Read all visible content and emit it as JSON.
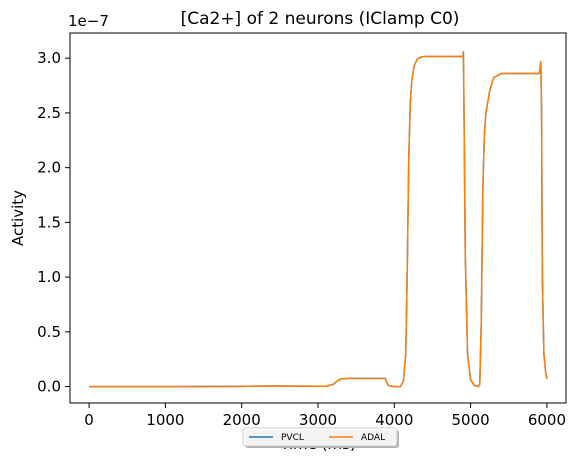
{
  "chart_data": {
    "type": "line",
    "title": "[Ca2+] of 2 neurons (IClamp C0)",
    "xlabel": "Time (ms)",
    "ylabel": "Activity",
    "y_offset_label": "1e−7",
    "xlim": [
      -250,
      6250
    ],
    "ylim": [
      -0.15,
      3.23
    ],
    "xticks": [
      0,
      1000,
      2000,
      3000,
      4000,
      5000,
      6000
    ],
    "xtick_labels": [
      "0",
      "1000",
      "2000",
      "3000",
      "4000",
      "5000",
      "6000"
    ],
    "yticks": [
      0.0,
      0.5,
      1.0,
      1.5,
      2.0,
      2.5,
      3.0
    ],
    "ytick_labels": [
      "0.0",
      "0.5",
      "1.0",
      "1.5",
      "2.0",
      "2.5",
      "3.0"
    ],
    "grid": false,
    "legend_placement": "bottom-center",
    "series": [
      {
        "name": "PVCL",
        "color": "#1f77b4",
        "x": [
          0,
          500,
          1000,
          1500,
          2000,
          2200,
          2400,
          2800,
          3100,
          3200,
          3250,
          3300,
          3400,
          3600,
          3880,
          3920,
          4000,
          4080,
          4120,
          4150,
          4170,
          4190,
          4210,
          4230,
          4260,
          4300,
          4350,
          4400,
          4500,
          4700,
          4900,
          4905,
          4915,
          4930,
          4960,
          5000,
          5050,
          5100,
          5120,
          5140,
          5160,
          5180,
          5200,
          5250,
          5300,
          5400,
          5600,
          5800,
          5900,
          5920,
          5930,
          5940,
          5960,
          5980,
          6000
        ],
        "values": [
          0,
          0,
          0,
          0.001,
          0.002,
          0.004,
          0.005,
          0.004,
          0.003,
          0.02,
          0.05,
          0.07,
          0.075,
          0.075,
          0.075,
          0.01,
          0,
          0,
          0.05,
          0.3,
          1.1,
          2.1,
          2.6,
          2.8,
          2.93,
          2.99,
          3.01,
          3.015,
          3.015,
          3.015,
          3.015,
          3.06,
          2.4,
          1.2,
          0.3,
          0.06,
          0.01,
          0,
          0.02,
          0.6,
          1.8,
          2.3,
          2.5,
          2.7,
          2.82,
          2.86,
          2.86,
          2.86,
          2.86,
          2.97,
          2.5,
          1.0,
          0.3,
          0.15,
          0.07
        ]
      },
      {
        "name": "ADAL",
        "color": "#ff7f0e",
        "x": [
          0,
          500,
          1000,
          1500,
          2000,
          2200,
          2400,
          2800,
          3100,
          3200,
          3250,
          3300,
          3400,
          3600,
          3880,
          3920,
          4000,
          4080,
          4120,
          4150,
          4170,
          4190,
          4210,
          4230,
          4260,
          4300,
          4350,
          4400,
          4500,
          4700,
          4900,
          4905,
          4915,
          4930,
          4960,
          5000,
          5050,
          5100,
          5120,
          5140,
          5160,
          5180,
          5200,
          5250,
          5300,
          5400,
          5600,
          5800,
          5900,
          5920,
          5930,
          5940,
          5960,
          5980,
          6000
        ],
        "values": [
          0,
          0,
          0,
          0.001,
          0.002,
          0.004,
          0.005,
          0.004,
          0.003,
          0.02,
          0.05,
          0.07,
          0.075,
          0.075,
          0.075,
          0.01,
          0,
          0,
          0.05,
          0.3,
          1.1,
          2.1,
          2.6,
          2.8,
          2.93,
          2.99,
          3.01,
          3.015,
          3.015,
          3.015,
          3.015,
          3.06,
          2.4,
          1.2,
          0.3,
          0.06,
          0.01,
          0,
          0.02,
          0.6,
          1.8,
          2.3,
          2.5,
          2.7,
          2.82,
          2.86,
          2.86,
          2.86,
          2.86,
          2.97,
          2.5,
          1.0,
          0.3,
          0.15,
          0.07
        ]
      }
    ]
  }
}
